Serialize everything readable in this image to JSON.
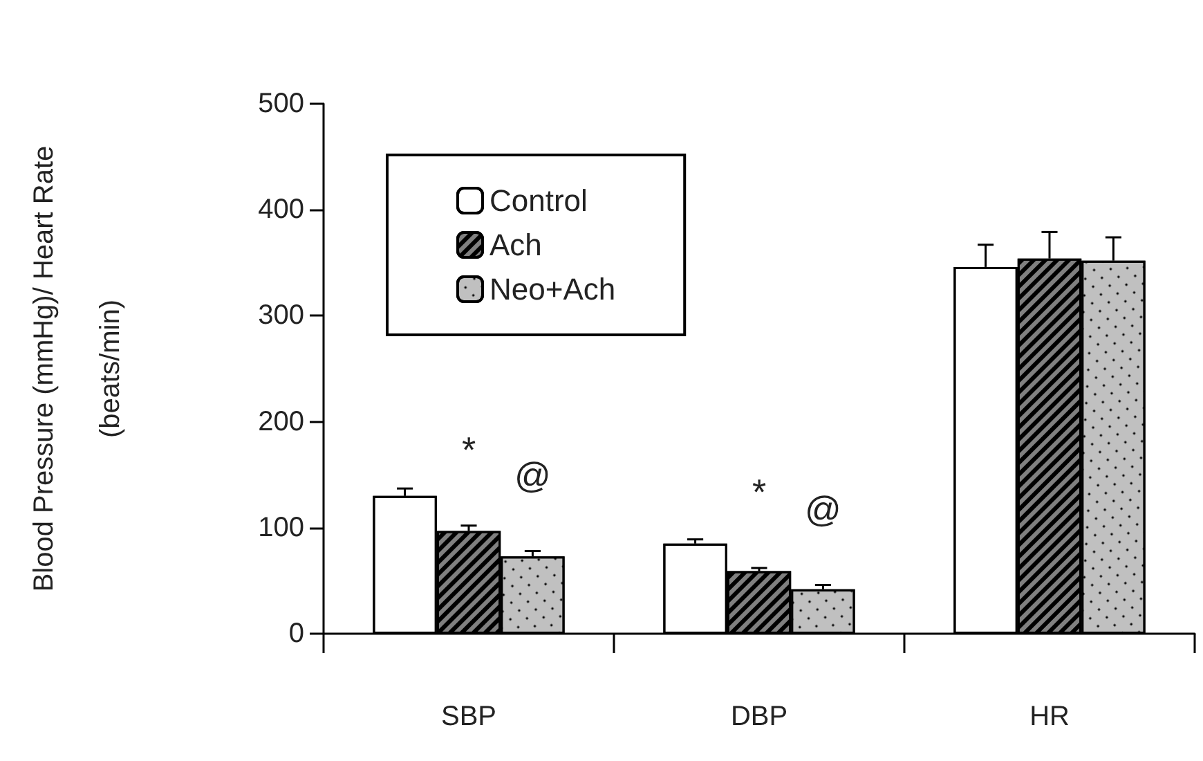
{
  "chart_data": {
    "type": "bar",
    "ylabel": "Blood Pressure (mmHg)/ Heart Rate\n(beats/min)",
    "categories": [
      "SBP",
      "DBP",
      "HR"
    ],
    "series": [
      {
        "name": "Control",
        "color": "#ffffff",
        "values": [
          130,
          85,
          346
        ],
        "errors": [
          [
            130,
            137
          ],
          [
            85,
            89
          ],
          [
            346,
            367
          ]
        ]
      },
      {
        "name": "Ach",
        "color": "#808080",
        "values": [
          97,
          59,
          354
        ],
        "errors": [
          [
            97,
            102
          ],
          [
            59,
            62
          ],
          [
            354,
            379
          ]
        ]
      },
      {
        "name": "Neo+Ach",
        "color": "#c0c0c0",
        "values": [
          73,
          42,
          352
        ],
        "errors": [
          [
            73,
            78
          ],
          [
            42,
            46
          ],
          [
            352,
            374
          ]
        ]
      }
    ],
    "annotations": [
      "*",
      "@",
      "*",
      "@"
    ],
    "ylim": [
      0,
      500
    ],
    "yticks": [
      0,
      100,
      200,
      300,
      400,
      500
    ],
    "grid": false,
    "legend": "top left"
  }
}
